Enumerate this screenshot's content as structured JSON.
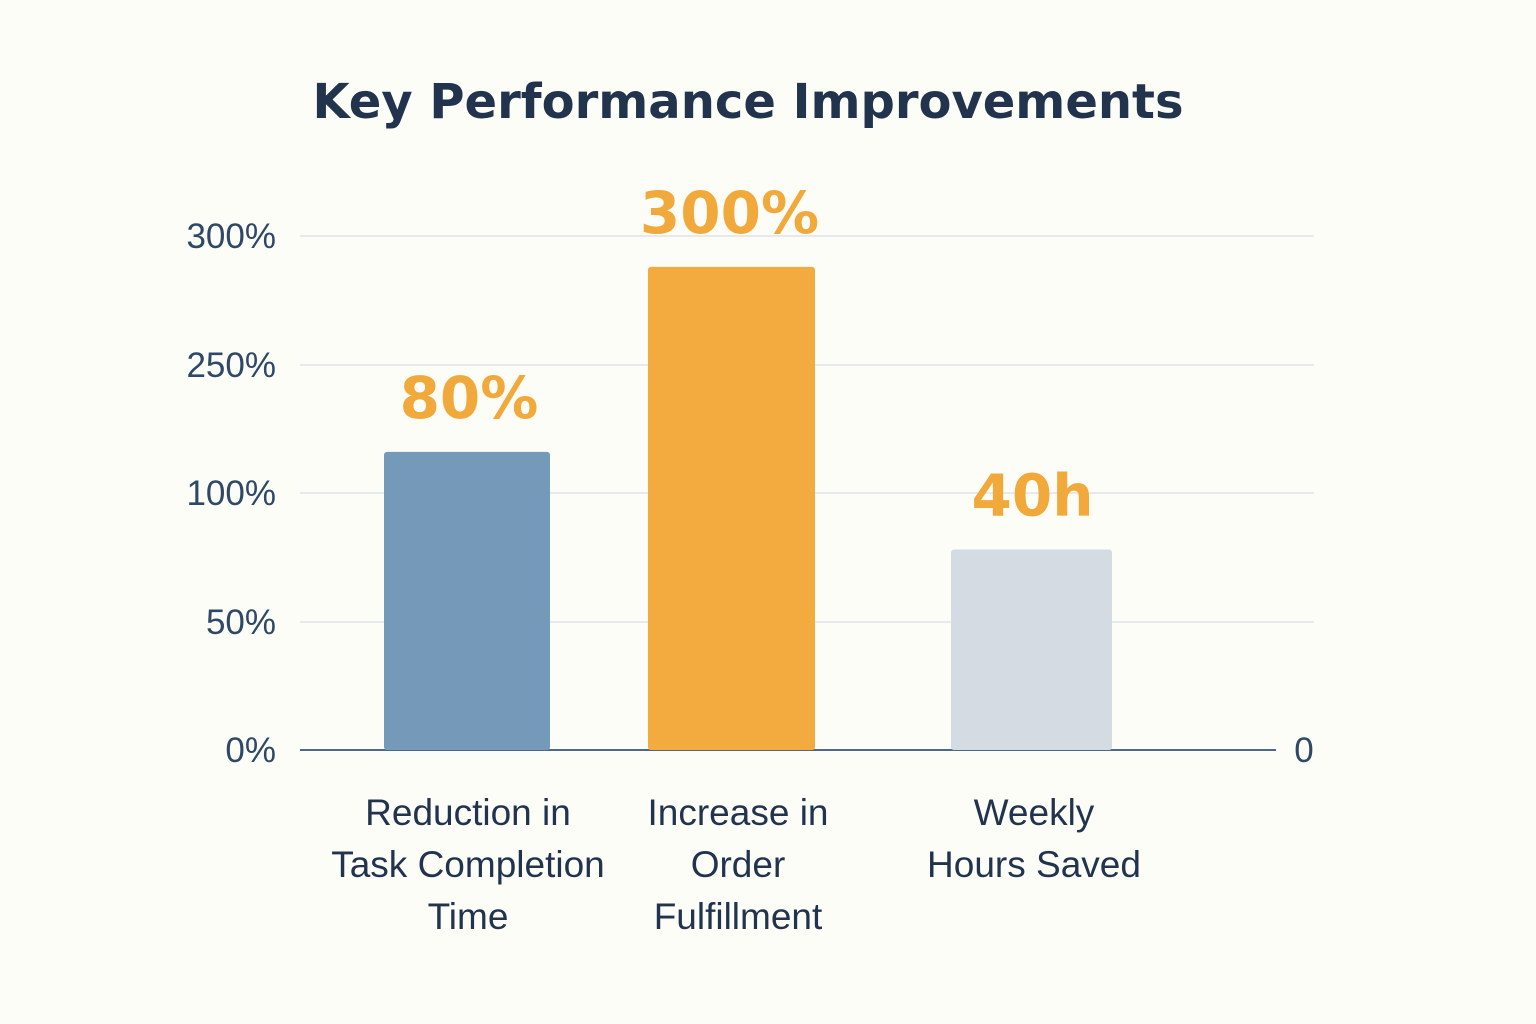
{
  "chart_data": {
    "type": "bar",
    "title": "Key Performance Improvements",
    "categories": [
      [
        "Reduction in",
        "Task Completion",
        "Time"
      ],
      [
        "Increase in",
        "Order",
        "Fulfillment"
      ],
      [
        "Weekly",
        "Hours Saved"
      ]
    ],
    "y_tick_labels": [
      "0%",
      "50%",
      "100%",
      "250%",
      "300%"
    ],
    "right_axis_label": "0",
    "grid": true,
    "bars": [
      {
        "data_label": "80%",
        "level": 0.58,
        "color": "#7599b8"
      },
      {
        "data_label": "300%",
        "level": 0.94,
        "color": "#f3ab3f"
      },
      {
        "data_label": "40h",
        "level": 0.39,
        "color": "#d4dbe3"
      }
    ],
    "data_label_color": "#f2a93b"
  }
}
